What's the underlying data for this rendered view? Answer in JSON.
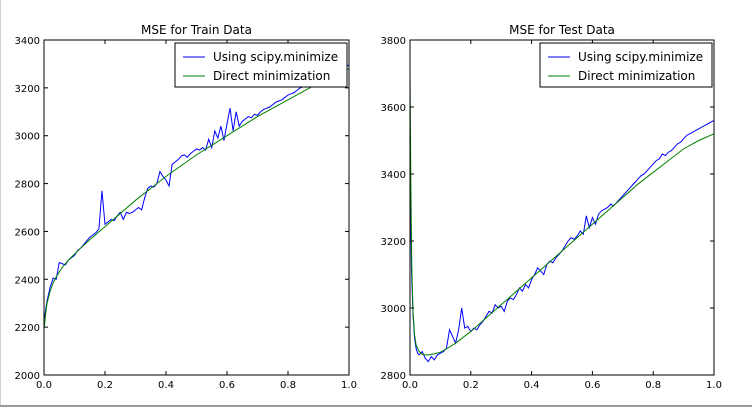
{
  "chart_data": [
    {
      "type": "line",
      "title": "MSE for Train Data",
      "xlim": [
        0.0,
        1.0
      ],
      "ylim": [
        2000,
        3400
      ],
      "xticks": [
        "0.0",
        "0.2",
        "0.4",
        "0.6",
        "0.8",
        "1.0"
      ],
      "yticks": [
        "2000",
        "2200",
        "2400",
        "2600",
        "2800",
        "3000",
        "3200",
        "3400"
      ],
      "grid": false,
      "legend_position": "top-right",
      "series": [
        {
          "name": "Using scipy.minimize",
          "color": "#0000ff",
          "x": [
            0.0,
            0.01,
            0.02,
            0.03,
            0.04,
            0.05,
            0.06,
            0.07,
            0.08,
            0.09,
            0.1,
            0.11,
            0.12,
            0.13,
            0.14,
            0.15,
            0.16,
            0.17,
            0.18,
            0.19,
            0.2,
            0.21,
            0.22,
            0.23,
            0.24,
            0.25,
            0.26,
            0.27,
            0.28,
            0.29,
            0.3,
            0.31,
            0.32,
            0.33,
            0.34,
            0.35,
            0.36,
            0.37,
            0.38,
            0.39,
            0.4,
            0.41,
            0.42,
            0.43,
            0.44,
            0.45,
            0.46,
            0.47,
            0.48,
            0.49,
            0.5,
            0.51,
            0.52,
            0.53,
            0.54,
            0.55,
            0.56,
            0.57,
            0.58,
            0.59,
            0.6,
            0.61,
            0.62,
            0.63,
            0.64,
            0.65,
            0.66,
            0.67,
            0.68,
            0.69,
            0.7,
            0.71,
            0.72,
            0.73,
            0.74,
            0.75,
            0.76,
            0.77,
            0.78,
            0.79,
            0.8,
            0.81,
            0.82,
            0.83,
            0.84,
            0.85,
            0.86,
            0.87,
            0.88,
            0.89,
            0.9,
            0.91,
            0.92,
            0.93,
            0.94,
            0.95,
            0.96,
            0.97,
            0.98,
            0.99,
            1.0
          ],
          "y": [
            2225,
            2310,
            2365,
            2405,
            2400,
            2470,
            2465,
            2460,
            2480,
            2490,
            2500,
            2520,
            2530,
            2545,
            2560,
            2575,
            2585,
            2595,
            2610,
            2770,
            2630,
            2640,
            2650,
            2645,
            2665,
            2680,
            2650,
            2680,
            2675,
            2680,
            2690,
            2700,
            2690,
            2740,
            2780,
            2790,
            2785,
            2800,
            2850,
            2830,
            2815,
            2790,
            2880,
            2890,
            2900,
            2915,
            2920,
            2910,
            2925,
            2935,
            2945,
            2940,
            2950,
            2940,
            2985,
            2950,
            3020,
            2990,
            3040,
            2980,
            3050,
            3115,
            3020,
            3100,
            3040,
            3060,
            3070,
            3080,
            3075,
            3090,
            3085,
            3100,
            3110,
            3115,
            3120,
            3130,
            3140,
            3145,
            3150,
            3160,
            3170,
            3175,
            3180,
            3190,
            3200,
            3205,
            3210,
            3220,
            3225,
            3230,
            3240,
            3245,
            3250,
            3260,
            3265,
            3270,
            3280,
            3285,
            3270,
            3290,
            3295
          ]
        },
        {
          "name": "Direct minimization",
          "color": "#008000",
          "x": [
            0.0,
            0.005,
            0.01,
            0.02,
            0.03,
            0.04,
            0.05,
            0.06,
            0.08,
            0.1,
            0.12,
            0.15,
            0.2,
            0.25,
            0.3,
            0.35,
            0.4,
            0.45,
            0.5,
            0.55,
            0.6,
            0.65,
            0.7,
            0.75,
            0.8,
            0.85,
            0.9,
            0.95,
            1.0
          ],
          "y": [
            2190,
            2250,
            2300,
            2350,
            2385,
            2410,
            2430,
            2450,
            2480,
            2505,
            2530,
            2565,
            2620,
            2675,
            2730,
            2780,
            2830,
            2875,
            2920,
            2960,
            3000,
            3040,
            3080,
            3115,
            3150,
            3185,
            3220,
            3250,
            3280
          ]
        }
      ]
    },
    {
      "type": "line",
      "title": "MSE for Test Data",
      "xlim": [
        0.0,
        1.0
      ],
      "ylim": [
        2800,
        3800
      ],
      "xticks": [
        "0.0",
        "0.2",
        "0.4",
        "0.6",
        "0.8",
        "1.0"
      ],
      "yticks": [
        "2800",
        "3000",
        "3200",
        "3400",
        "3600",
        "3800"
      ],
      "grid": false,
      "legend_position": "top-right",
      "series": [
        {
          "name": "Using scipy.minimize",
          "color": "#0000ff",
          "x": [
            0.0,
            0.005,
            0.01,
            0.015,
            0.02,
            0.025,
            0.03,
            0.04,
            0.05,
            0.06,
            0.07,
            0.08,
            0.09,
            0.1,
            0.11,
            0.12,
            0.13,
            0.14,
            0.15,
            0.16,
            0.17,
            0.18,
            0.19,
            0.2,
            0.21,
            0.22,
            0.23,
            0.24,
            0.25,
            0.26,
            0.27,
            0.28,
            0.29,
            0.3,
            0.31,
            0.32,
            0.33,
            0.34,
            0.35,
            0.36,
            0.37,
            0.38,
            0.39,
            0.4,
            0.41,
            0.42,
            0.43,
            0.44,
            0.45,
            0.46,
            0.47,
            0.48,
            0.49,
            0.5,
            0.51,
            0.52,
            0.53,
            0.54,
            0.55,
            0.56,
            0.57,
            0.58,
            0.59,
            0.6,
            0.61,
            0.62,
            0.63,
            0.64,
            0.65,
            0.66,
            0.67,
            0.68,
            0.69,
            0.7,
            0.71,
            0.72,
            0.73,
            0.74,
            0.75,
            0.76,
            0.77,
            0.78,
            0.79,
            0.8,
            0.81,
            0.82,
            0.83,
            0.84,
            0.85,
            0.86,
            0.87,
            0.88,
            0.89,
            0.9,
            0.91,
            0.92,
            0.93,
            0.94,
            0.95,
            0.96,
            0.97,
            0.98,
            0.99,
            1.0
          ],
          "y": [
            3480,
            3110,
            2980,
            2910,
            2880,
            2865,
            2860,
            2870,
            2850,
            2840,
            2855,
            2845,
            2860,
            2865,
            2870,
            2880,
            2935,
            2915,
            2895,
            2935,
            3000,
            2940,
            2945,
            2930,
            2940,
            2935,
            2950,
            2960,
            2975,
            2990,
            2985,
            3010,
            3000,
            3005,
            2990,
            3020,
            3030,
            3025,
            3040,
            3060,
            3050,
            3070,
            3060,
            3085,
            3100,
            3120,
            3110,
            3100,
            3130,
            3140,
            3135,
            3150,
            3160,
            3170,
            3185,
            3200,
            3210,
            3205,
            3215,
            3230,
            3220,
            3275,
            3240,
            3270,
            3250,
            3280,
            3290,
            3295,
            3300,
            3310,
            3305,
            3315,
            3325,
            3335,
            3345,
            3355,
            3365,
            3375,
            3385,
            3395,
            3400,
            3410,
            3420,
            3430,
            3440,
            3445,
            3460,
            3455,
            3465,
            3470,
            3480,
            3490,
            3495,
            3505,
            3515,
            3520,
            3525,
            3530,
            3535,
            3540,
            3545,
            3550,
            3555,
            3560
          ]
        },
        {
          "name": "Direct minimization",
          "color": "#008000",
          "x": [
            0.0,
            0.003,
            0.006,
            0.01,
            0.015,
            0.02,
            0.03,
            0.04,
            0.05,
            0.06,
            0.08,
            0.1,
            0.12,
            0.15,
            0.2,
            0.25,
            0.3,
            0.35,
            0.4,
            0.45,
            0.5,
            0.55,
            0.6,
            0.65,
            0.7,
            0.75,
            0.8,
            0.85,
            0.9,
            0.95,
            1.0
          ],
          "y": [
            3700,
            3350,
            3120,
            2990,
            2920,
            2890,
            2870,
            2862,
            2860,
            2860,
            2863,
            2868,
            2878,
            2895,
            2930,
            2970,
            3010,
            3050,
            3090,
            3130,
            3170,
            3210,
            3250,
            3290,
            3330,
            3370,
            3405,
            3440,
            3475,
            3500,
            3520
          ]
        }
      ]
    }
  ]
}
